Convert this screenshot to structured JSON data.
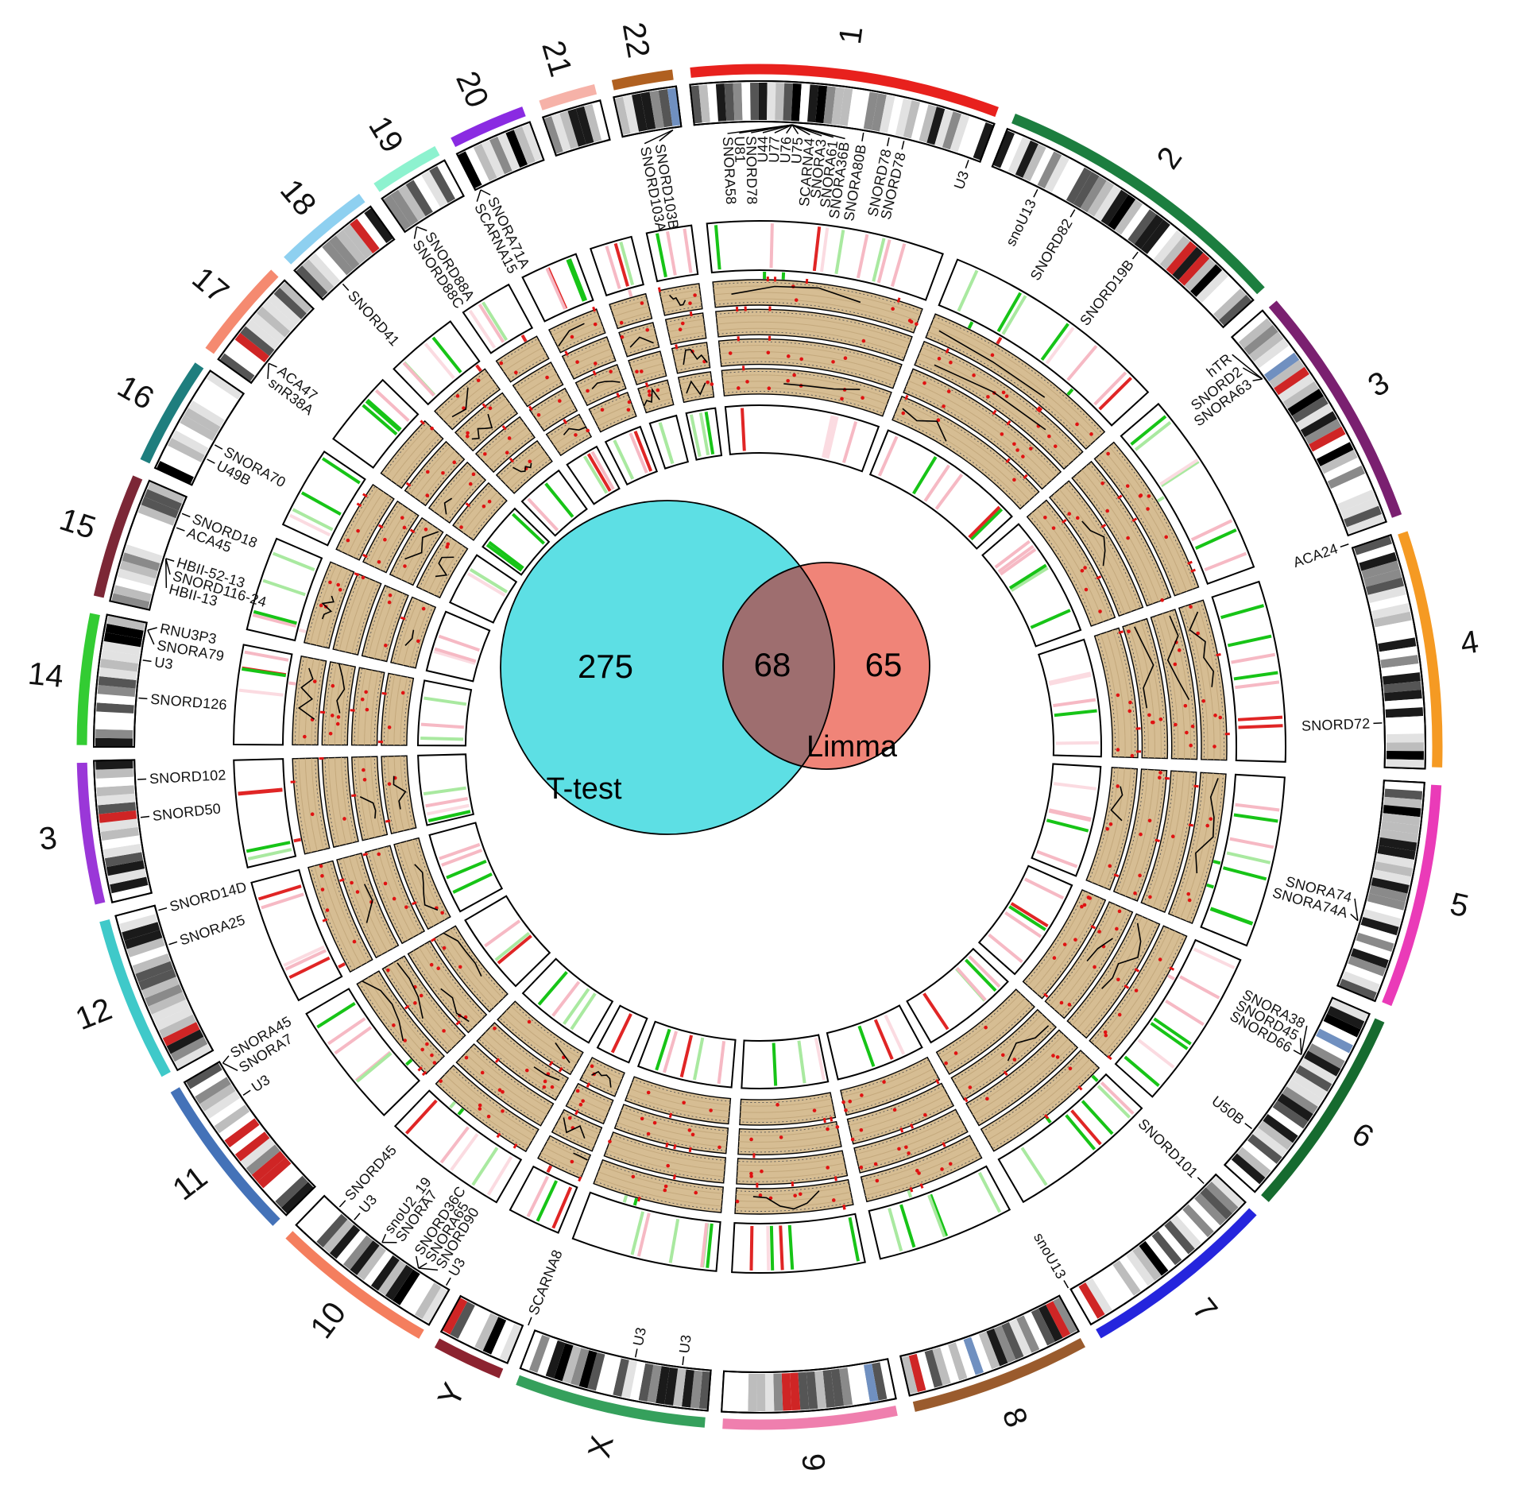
{
  "figure": {
    "background": "#ffffff",
    "kind": "circular genome plot with central Venn diagram"
  },
  "chart_data": {
    "type": "circos_genome_plot_with_venn",
    "venn": {
      "left": {
        "label": "T-test",
        "count": 275,
        "color": "#5ddfe4"
      },
      "right": {
        "label": "Limma",
        "count": 65,
        "color": "#f08478"
      },
      "overlap": {
        "count": 68,
        "color": "#9e6e6f"
      }
    },
    "chromosomes": [
      {
        "label": "1",
        "span_rel": 249,
        "color": "#e8211d"
      },
      {
        "label": "2",
        "span_rel": 243,
        "color": "#1c7e3f"
      },
      {
        "label": "3",
        "span_rel": 198,
        "color": "#7a2070"
      },
      {
        "label": "4",
        "span_rel": 191,
        "color": "#f59a23"
      },
      {
        "label": "5",
        "span_rel": 181,
        "color": "#ea3bb8"
      },
      {
        "label": "6",
        "span_rel": 171,
        "color": "#166b2f"
      },
      {
        "label": "7",
        "span_rel": 159,
        "color": "#2525dd"
      },
      {
        "label": "8",
        "span_rel": 146,
        "color": "#9a5b2d"
      },
      {
        "label": "9",
        "span_rel": 141,
        "color": "#ef7fae"
      },
      {
        "label": "X",
        "span_rel": 155,
        "color": "#35a05c"
      },
      {
        "label": "Y",
        "span_rel": 59,
        "color": "#8c2330"
      },
      {
        "label": "10",
        "span_rel": 134,
        "color": "#f47e5e"
      },
      {
        "label": "11",
        "span_rel": 135,
        "color": "#4472b8"
      },
      {
        "label": "12",
        "span_rel": 134,
        "color": "#3fc9c9"
      },
      {
        "label": "3",
        "span_rel": 115,
        "color": "#9a37d8"
      },
      {
        "label": "14",
        "span_rel": 107,
        "color": "#33cc33"
      },
      {
        "label": "15",
        "span_rel": 102,
        "color": "#7c2736"
      },
      {
        "label": "16",
        "span_rel": 90,
        "color": "#1e7e7e"
      },
      {
        "label": "17",
        "span_rel": 83,
        "color": "#f58a70"
      },
      {
        "label": "18",
        "span_rel": 80,
        "color": "#8ed0f0"
      },
      {
        "label": "19",
        "span_rel": 59,
        "color": "#8df2cf"
      },
      {
        "label": "20",
        "span_rel": 64,
        "color": "#8a2be2"
      },
      {
        "label": "21",
        "span_rel": 48,
        "color": "#f6b2a8"
      },
      {
        "label": "22",
        "span_rel": 51,
        "color": "#b06020"
      }
    ],
    "ideogram": {
      "band_colors": [
        [
          "#ffffff",
          0.24
        ],
        [
          "#e2e2e2",
          0.16
        ],
        [
          "#bdbdbd",
          0.14
        ],
        [
          "#8a8a8a",
          0.12
        ],
        [
          "#555555",
          0.1
        ],
        [
          "#1a1a1a",
          0.13
        ],
        [
          "#000000",
          0.05
        ],
        [
          "#cf2525",
          0.04
        ],
        [
          "#7090c0",
          0.02
        ]
      ]
    },
    "tracks": {
      "tick_palette": [
        [
          "#17c417",
          0.3
        ],
        [
          "#a9e9a0",
          0.18
        ],
        [
          "#f6b9c4",
          0.28
        ],
        [
          "#fbdbe1",
          0.14
        ],
        [
          "#e02525",
          0.1
        ]
      ],
      "data_rings": {
        "count": 4,
        "fill": "#d6bd93",
        "marker_color": "#e01212",
        "line_color": "#000000"
      }
    },
    "gene_labels": [
      {
        "text": "SNORD103A",
        "angle": -10.8,
        "point": -8.0
      },
      {
        "text": "SNORD103B",
        "angle": -9.4,
        "point": -8.0
      },
      {
        "text": "SNORA58",
        "angle": -3.0,
        "point": 3.0
      },
      {
        "text": "U81",
        "angle": -1.9,
        "point": 3.0
      },
      {
        "text": "SNORD78",
        "angle": -0.8,
        "point": 3.0
      },
      {
        "text": "U44",
        "angle": 0.3,
        "point": 3.0
      },
      {
        "text": "U77",
        "angle": 1.4,
        "point": 3.0
      },
      {
        "text": "U76",
        "angle": 2.5,
        "point": 3.0
      },
      {
        "text": "U75",
        "angle": 3.6,
        "point": 3.0
      },
      {
        "text": "SCARNA4",
        "angle": 4.7,
        "point": 3.0
      },
      {
        "text": "SNORA3",
        "angle": 5.8,
        "point": 3.0
      },
      {
        "text": "SNORA61",
        "angle": 6.9,
        "point": 3.0
      },
      {
        "text": "SNORA36B",
        "angle": 8.0,
        "point": 3.0
      },
      {
        "text": "SNORA80B",
        "angle": 9.6
      },
      {
        "text": "SNORD78",
        "angle": 12.0
      },
      {
        "text": "SNORD78",
        "angle": 13.4
      },
      {
        "text": "U3",
        "angle": 19.6
      },
      {
        "text": "snoU13",
        "angle": 26.5
      },
      {
        "text": "SNORD82",
        "angle": 30.4
      },
      {
        "text": "SNORD19B",
        "angle": 37.4
      },
      {
        "text": "hTR",
        "angle": 50.3,
        "point": 53.8
      },
      {
        "text": "SNORD2",
        "angle": 51.9,
        "point": 53.8
      },
      {
        "text": "SNORA63",
        "angle": 53.4,
        "point": 53.8
      },
      {
        "text": "ACA24",
        "angle": 71.0
      },
      {
        "text": "SNORD72",
        "angle": 87.8
      },
      {
        "text": "SNORA74",
        "angle": 104.3,
        "point": 106.2
      },
      {
        "text": "SNORA74A",
        "angle": 105.8,
        "point": 106.2
      },
      {
        "text": "SNORA38",
        "angle": 117.0,
        "point": 119.6
      },
      {
        "text": "SNORD45",
        "angle": 118.3,
        "point": 119.6
      },
      {
        "text": "SNORD66",
        "angle": 119.6,
        "point": 119.6
      },
      {
        "text": "U50B",
        "angle": 127.8
      },
      {
        "text": "SNORD101",
        "angle": 134.5
      },
      {
        "text": "snoU13",
        "angle": 150.3
      },
      {
        "text": "U3",
        "angle": 187.1
      },
      {
        "text": "U3",
        "angle": 191.5
      },
      {
        "text": "SCARNA8",
        "angle": 201.8
      },
      {
        "text": "U3",
        "angle": 210.2
      },
      {
        "text": "SNORD90",
        "angle": 211.6,
        "point": 213.2
      },
      {
        "text": "SNORA65",
        "angle": 212.8,
        "point": 213.2
      },
      {
        "text": "SNORD36C",
        "angle": 214.0,
        "point": 213.2
      },
      {
        "text": "SNORA7",
        "angle": 216.2,
        "point": 217.3
      },
      {
        "text": "snoU2_19",
        "angle": 217.5,
        "point": 217.3
      },
      {
        "text": "U3",
        "angle": 220.6
      },
      {
        "text": "SNORD45",
        "angle": 222.4
      },
      {
        "text": "U3",
        "angle": 236.0
      },
      {
        "text": "SNORA7",
        "angle": 238.2,
        "point": 239.5
      },
      {
        "text": "SNORA45",
        "angle": 239.8,
        "point": 239.5
      },
      {
        "text": "SNORA25",
        "angle": 251.5
      },
      {
        "text": "SNORD14D",
        "angle": 254.8
      },
      {
        "text": "SNORD50",
        "angle": 263.5
      },
      {
        "text": "SNORD102",
        "angle": 267.0
      },
      {
        "text": "SNORD126",
        "angle": 274.5
      },
      {
        "text": "U3",
        "angle": 278.0
      },
      {
        "text": "SNORA79",
        "angle": 279.6,
        "point": 280.8
      },
      {
        "text": "RNU3P3",
        "angle": 281.2,
        "point": 280.8
      },
      {
        "text": "HBII-13",
        "angle": 285.0,
        "point": 287.6
      },
      {
        "text": "SNORD116-24",
        "angle": 286.3,
        "point": 287.6
      },
      {
        "text": "HBII-52-13",
        "angle": 287.6,
        "point": 287.6
      },
      {
        "text": "ACA45",
        "angle": 290.6
      },
      {
        "text": "SNORD18",
        "angle": 292.0
      },
      {
        "text": "U49B",
        "angle": 297.5
      },
      {
        "text": "SNORA70",
        "angle": 299.0
      },
      {
        "text": "snR38A",
        "angle": 306.8,
        "point": 308.0
      },
      {
        "text": "ACA47",
        "angle": 308.2,
        "point": 308.0
      },
      {
        "text": "SNORD41",
        "angle": 318.0
      },
      {
        "text": "SNORD88C",
        "angle": 325.8,
        "point": 326.6
      },
      {
        "text": "SNORD88A",
        "angle": 327.2,
        "point": 326.6
      },
      {
        "text": "SCARNA15",
        "angle": 332.6,
        "point": 333.4
      },
      {
        "text": "SNORA71A",
        "angle": 334.0,
        "point": 333.4
      }
    ]
  }
}
